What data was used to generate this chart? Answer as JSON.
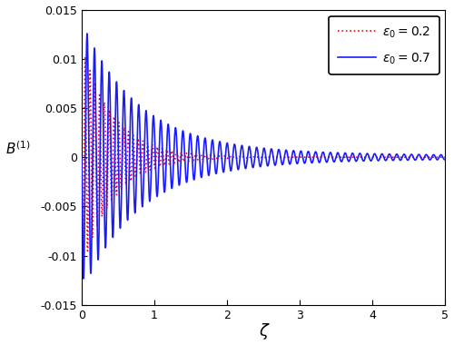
{
  "title": "",
  "xlabel": "ζ",
  "ylabel": "B^{(1)}",
  "xlim": [
    0,
    5
  ],
  "ylim": [
    -0.015,
    0.015
  ],
  "yticks": [
    -0.015,
    -0.01,
    -0.005,
    0,
    0.005,
    0.01,
    0.015
  ],
  "xticks": [
    0,
    1,
    2,
    3,
    4,
    5
  ],
  "color_red": "#ff0000",
  "color_blue": "#1a1aff",
  "background_color": "#ffffff",
  "curve1": {
    "A": 0.0115,
    "decay": 2.2,
    "omega": 50,
    "phase": 0.0,
    "chirp": 0.0
  },
  "curve2": {
    "A": 0.013,
    "decay": 1.2,
    "omega": 35,
    "phase": 0.0,
    "chirp": 0.0
  }
}
